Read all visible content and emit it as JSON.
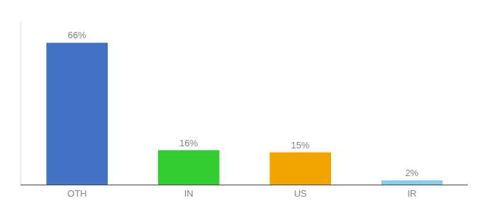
{
  "chart_data": {
    "type": "bar",
    "categories": [
      "OTH",
      "IN",
      "US",
      "IR"
    ],
    "values": [
      66,
      16,
      15,
      2
    ],
    "value_labels": [
      "66%",
      "16%",
      "15%",
      "2%"
    ],
    "colors": [
      "#4472c4",
      "#33cc33",
      "#f0a500",
      "#87ceeb"
    ],
    "ylim": [
      0,
      76
    ],
    "data_labels": true,
    "tick_labels": "x",
    "grid": false
  }
}
